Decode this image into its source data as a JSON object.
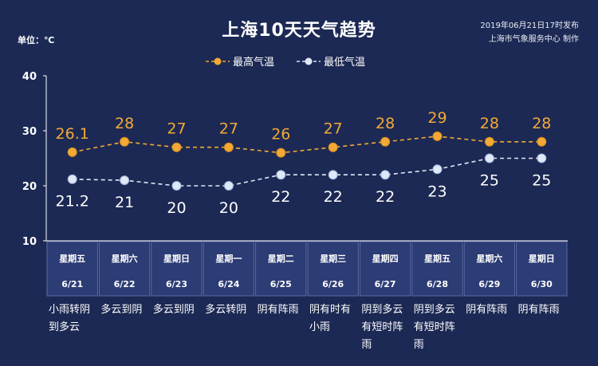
{
  "header": {
    "title": "上海10天天气趋势",
    "publish_time": "2019年06月21日17时发布",
    "producer": "上海市气象服务中心  制作",
    "unit": "单位：℃"
  },
  "legend": [
    {
      "label": "最高气温",
      "color": "#f3a935"
    },
    {
      "label": "最低气温",
      "color": "#dfe8f7"
    }
  ],
  "chart_data": {
    "type": "line",
    "title": "上海10天天气趋势",
    "ylabel": "单位：℃",
    "ylim": [
      10,
      40
    ],
    "yticks": [
      10,
      20,
      30,
      40
    ],
    "grid": false,
    "legend_position": "top",
    "categories": [
      {
        "weekday": "星期五",
        "date": "6/21",
        "weather": "小雨转阴到多云"
      },
      {
        "weekday": "星期六",
        "date": "6/22",
        "weather": "多云到阴"
      },
      {
        "weekday": "星期日",
        "date": "6/23",
        "weather": "多云到阴"
      },
      {
        "weekday": "星期一",
        "date": "6/24",
        "weather": "多云转阴"
      },
      {
        "weekday": "星期二",
        "date": "6/25",
        "weather": "阴有阵雨"
      },
      {
        "weekday": "星期三",
        "date": "6/26",
        "weather": "阴有时有小雨"
      },
      {
        "weekday": "星期四",
        "date": "6/27",
        "weather": "阴到多云有短时阵雨"
      },
      {
        "weekday": "星期五",
        "date": "6/28",
        "weather": "阴到多云有短时阵雨"
      },
      {
        "weekday": "星期六",
        "date": "6/29",
        "weather": "阴有阵雨"
      },
      {
        "weekday": "星期日",
        "date": "6/30",
        "weather": "阴有阵雨"
      }
    ],
    "series": [
      {
        "name": "最高气温",
        "color": "#f3a935",
        "values": [
          26.1,
          28,
          27,
          27,
          26,
          27,
          28,
          29,
          28,
          28
        ],
        "labels": [
          "26.1",
          "28",
          "27",
          "27",
          "26",
          "27",
          "28",
          "29",
          "28",
          "28"
        ]
      },
      {
        "name": "最低气温",
        "color": "#dfe8f7",
        "values": [
          21.2,
          21,
          20,
          20,
          22,
          22,
          22,
          23,
          25,
          25
        ],
        "labels": [
          "21.2",
          "21",
          "20",
          "20",
          "22",
          "22",
          "22",
          "23",
          "25",
          "25"
        ]
      }
    ]
  }
}
